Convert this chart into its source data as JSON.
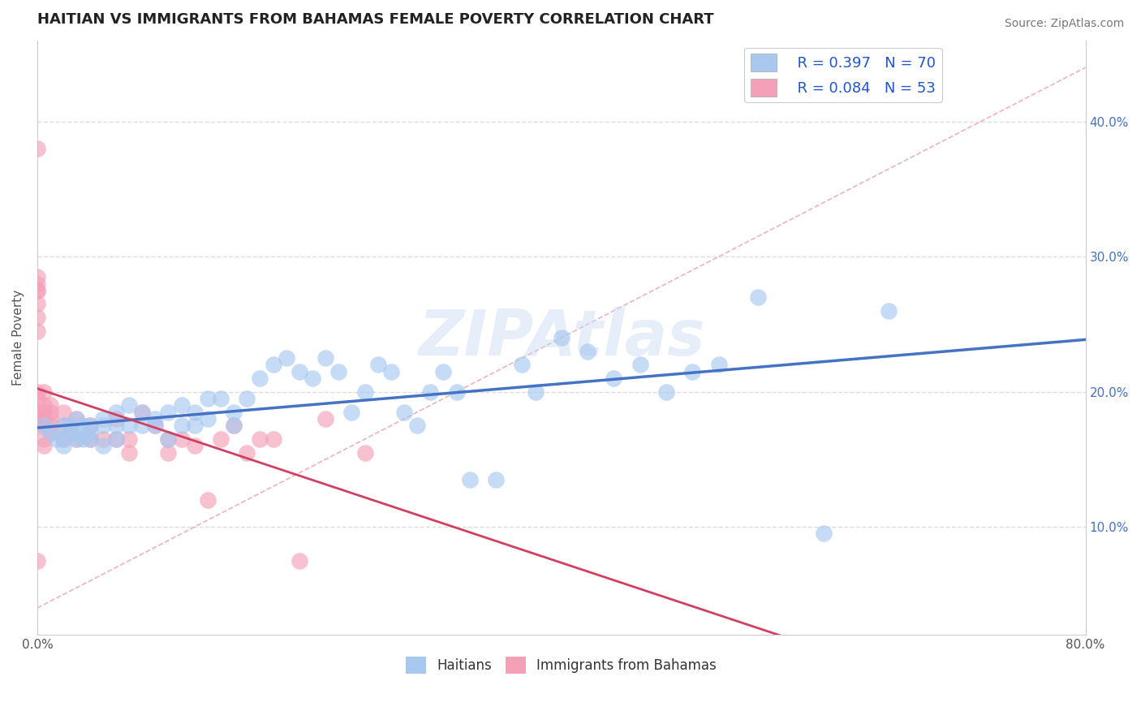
{
  "title": "HAITIAN VS IMMIGRANTS FROM BAHAMAS FEMALE POVERTY CORRELATION CHART",
  "source": "Source: ZipAtlas.com",
  "ylabel": "Female Poverty",
  "watermark": "ZIPAtlas",
  "legend_R1": "R = 0.397",
  "legend_N1": "N = 70",
  "legend_R2": "R = 0.084",
  "legend_N2": "N = 53",
  "color_blue": "#a8c8f0",
  "color_pink": "#f4a0b8",
  "line_blue": "#4472c4",
  "line_pink": "#d04060",
  "xlim": [
    0.0,
    0.8
  ],
  "ylim": [
    0.02,
    0.46
  ],
  "yticks": [
    0.1,
    0.2,
    0.3,
    0.4
  ],
  "ytick_labels": [
    "10.0%",
    "20.0%",
    "30.0%",
    "40.0%"
  ],
  "xtick_positions": [
    0.0,
    0.1,
    0.2,
    0.3,
    0.4,
    0.5,
    0.6,
    0.7,
    0.8
  ],
  "xtick_labels": [
    "0.0%",
    "",
    "",
    "",
    "",
    "",
    "",
    "",
    "80.0%"
  ],
  "haitians_x": [
    0.005,
    0.01,
    0.015,
    0.02,
    0.02,
    0.02,
    0.025,
    0.025,
    0.03,
    0.03,
    0.03,
    0.035,
    0.035,
    0.04,
    0.04,
    0.04,
    0.05,
    0.05,
    0.05,
    0.06,
    0.06,
    0.06,
    0.07,
    0.07,
    0.08,
    0.08,
    0.09,
    0.09,
    0.1,
    0.1,
    0.11,
    0.11,
    0.12,
    0.12,
    0.13,
    0.13,
    0.14,
    0.15,
    0.15,
    0.16,
    0.17,
    0.18,
    0.19,
    0.2,
    0.21,
    0.22,
    0.23,
    0.24,
    0.25,
    0.26,
    0.27,
    0.28,
    0.29,
    0.3,
    0.31,
    0.32,
    0.33,
    0.35,
    0.37,
    0.38,
    0.4,
    0.42,
    0.44,
    0.46,
    0.48,
    0.5,
    0.52,
    0.55,
    0.6,
    0.65
  ],
  "haitians_y": [
    0.175,
    0.17,
    0.165,
    0.175,
    0.165,
    0.16,
    0.175,
    0.17,
    0.18,
    0.17,
    0.165,
    0.175,
    0.165,
    0.175,
    0.17,
    0.165,
    0.175,
    0.18,
    0.16,
    0.175,
    0.185,
    0.165,
    0.19,
    0.175,
    0.175,
    0.185,
    0.175,
    0.18,
    0.165,
    0.185,
    0.175,
    0.19,
    0.185,
    0.175,
    0.195,
    0.18,
    0.195,
    0.175,
    0.185,
    0.195,
    0.21,
    0.22,
    0.225,
    0.215,
    0.21,
    0.225,
    0.215,
    0.185,
    0.2,
    0.22,
    0.215,
    0.185,
    0.175,
    0.2,
    0.215,
    0.2,
    0.135,
    0.135,
    0.22,
    0.2,
    0.24,
    0.23,
    0.21,
    0.22,
    0.2,
    0.215,
    0.22,
    0.27,
    0.095,
    0.26
  ],
  "bahamas_x": [
    0.0,
    0.0,
    0.0,
    0.0,
    0.0,
    0.0,
    0.0,
    0.0,
    0.0,
    0.0,
    0.0,
    0.0,
    0.0,
    0.0,
    0.005,
    0.005,
    0.005,
    0.005,
    0.005,
    0.005,
    0.005,
    0.01,
    0.01,
    0.01,
    0.01,
    0.01,
    0.02,
    0.02,
    0.02,
    0.03,
    0.03,
    0.04,
    0.04,
    0.05,
    0.06,
    0.06,
    0.07,
    0.07,
    0.08,
    0.09,
    0.1,
    0.1,
    0.11,
    0.12,
    0.13,
    0.14,
    0.15,
    0.16,
    0.17,
    0.18,
    0.2,
    0.22,
    0.25
  ],
  "bahamas_y": [
    0.38,
    0.275,
    0.285,
    0.28,
    0.275,
    0.265,
    0.255,
    0.245,
    0.2,
    0.195,
    0.185,
    0.18,
    0.175,
    0.075,
    0.2,
    0.19,
    0.185,
    0.18,
    0.175,
    0.165,
    0.16,
    0.19,
    0.185,
    0.18,
    0.175,
    0.17,
    0.185,
    0.175,
    0.165,
    0.18,
    0.165,
    0.175,
    0.165,
    0.165,
    0.18,
    0.165,
    0.165,
    0.155,
    0.185,
    0.175,
    0.165,
    0.155,
    0.165,
    0.16,
    0.12,
    0.165,
    0.175,
    0.155,
    0.165,
    0.165,
    0.075,
    0.18,
    0.155
  ]
}
